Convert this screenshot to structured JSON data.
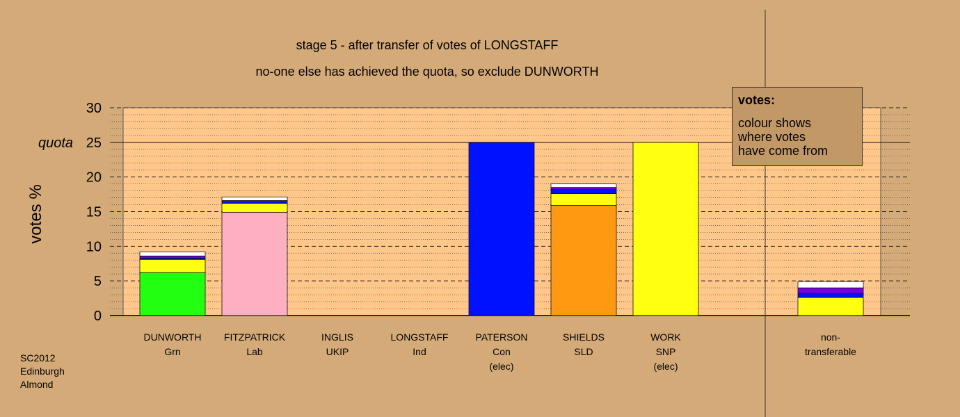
{
  "title": "stage 5 - after transfer of votes of LONGSTAFF",
  "subtitle": "no-one else has achieved the quota, so exclude DUNWORTH",
  "legend": {
    "heading": "votes:",
    "lines": [
      "colour shows",
      "where votes",
      "have come from"
    ]
  },
  "credit": [
    "SC2012",
    "Edinburgh",
    "Almond"
  ],
  "colors": {
    "background": "#d4aa78",
    "plot_area": "#ffc78a",
    "Grn": "#22ff11",
    "Lab": "#ffb0c0",
    "Con": "#0011ff",
    "SLD": "#ff9911",
    "SNP": "#ffff11",
    "UKIP": "#7700dd",
    "Ind": "#ffffff"
  },
  "chart_data": {
    "type": "bar",
    "stacked": true,
    "ylabel": "votes %",
    "ylim": [
      0,
      30
    ],
    "yticks": [
      "0",
      "5",
      "10",
      "15",
      "20",
      "25",
      "30"
    ],
    "quota_label": "quota",
    "quota": 25,
    "grid": true,
    "legend_position": "top-right",
    "categories": [
      {
        "name": "DUNWORTH",
        "party": "Grn",
        "note": ""
      },
      {
        "name": "FITZPATRICK",
        "party": "Lab",
        "note": ""
      },
      {
        "name": "INGLIS",
        "party": "UKIP",
        "note": ""
      },
      {
        "name": "LONGSTAFF",
        "party": "Ind",
        "note": ""
      },
      {
        "name": "PATERSON",
        "party": "Con",
        "note": "(elec)"
      },
      {
        "name": "SHIELDS",
        "party": "SLD",
        "note": ""
      },
      {
        "name": "WORK",
        "party": "SNP",
        "note": "(elec)"
      },
      {
        "name": "non-",
        "party": "transferable",
        "note": ""
      }
    ],
    "bars": [
      [
        {
          "source": "Grn",
          "value": 6.2
        },
        {
          "source": "SNP",
          "value": 1.9
        },
        {
          "source": "Con",
          "value": 0.2
        },
        {
          "source": "UKIP",
          "value": 0.3
        },
        {
          "source": "Ind",
          "value": 0.6
        }
      ],
      [
        {
          "source": "Lab",
          "value": 14.9
        },
        {
          "source": "SNP",
          "value": 1.3
        },
        {
          "source": "Con",
          "value": 0.2
        },
        {
          "source": "UKIP",
          "value": 0.2
        },
        {
          "source": "Ind",
          "value": 0.5
        }
      ],
      [],
      [],
      [
        {
          "source": "Con",
          "value": 25.0
        }
      ],
      [
        {
          "source": "SLD",
          "value": 15.9
        },
        {
          "source": "SNP",
          "value": 1.7
        },
        {
          "source": "Con",
          "value": 0.6
        },
        {
          "source": "UKIP",
          "value": 0.3
        },
        {
          "source": "Ind",
          "value": 0.5
        }
      ],
      [
        {
          "source": "SNP",
          "value": 25.0
        }
      ],
      [
        {
          "source": "SNP",
          "value": 2.6
        },
        {
          "source": "Con",
          "value": 0.6
        },
        {
          "source": "UKIP",
          "value": 0.8
        },
        {
          "source": "Ind",
          "value": 0.9
        }
      ]
    ]
  }
}
